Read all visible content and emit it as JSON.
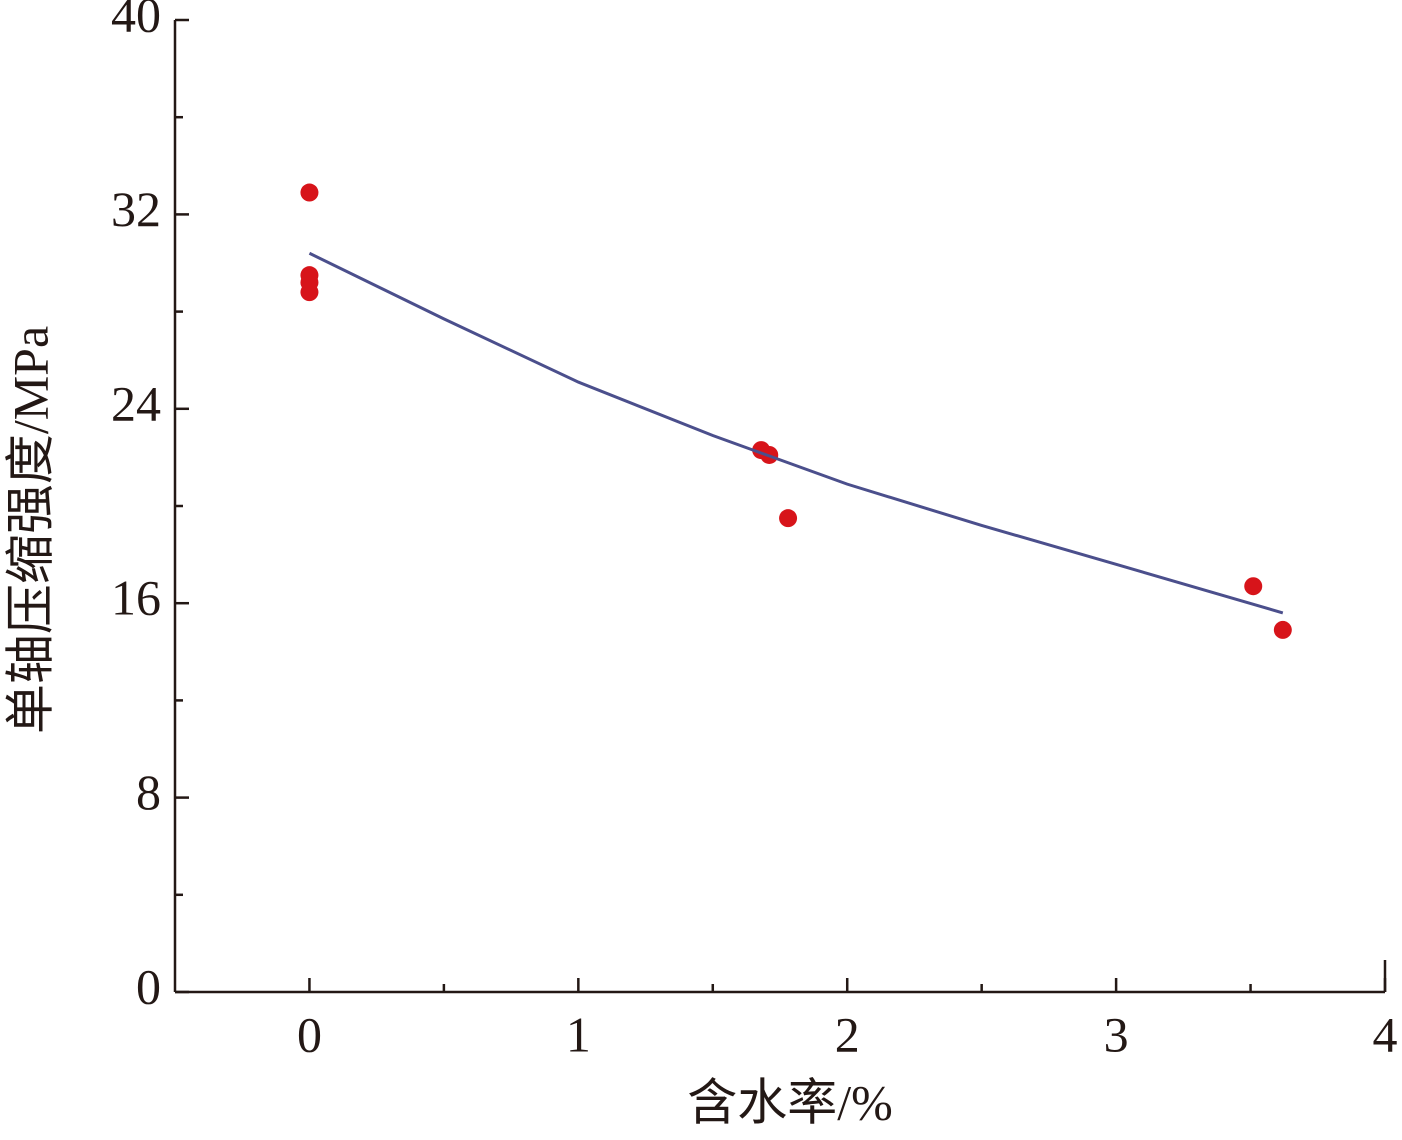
{
  "chart_data": {
    "type": "scatter",
    "x_label": "含水率/%",
    "y_label": "单轴压缩强度/MPa",
    "xlim": [
      -0.5,
      4
    ],
    "ylim": [
      0,
      40
    ],
    "xticks": [
      0,
      1,
      2,
      3,
      4
    ],
    "yticks": [
      0,
      8,
      16,
      24,
      32,
      40
    ],
    "x_minor_ticks": [
      0.5,
      1.5,
      2.5,
      3.5
    ],
    "y_minor_ticks": [
      4,
      12,
      20,
      28,
      36
    ],
    "series": [
      {
        "type": "scatter",
        "color": "#d7141a",
        "x": [
          0,
          0,
          0,
          0,
          1.68,
          1.71,
          1.78,
          3.51,
          3.62
        ],
        "values": [
          32.9,
          29.5,
          29.2,
          28.8,
          22.3,
          22.1,
          19.5,
          16.7,
          14.9
        ]
      },
      {
        "type": "line",
        "color": "#4b4f8c",
        "x": [
          0,
          0.5,
          1,
          1.5,
          2,
          2.5,
          3,
          3.62
        ],
        "values": [
          30.4,
          27.7,
          25.1,
          22.9,
          20.9,
          19.2,
          17.6,
          15.6
        ]
      }
    ]
  }
}
